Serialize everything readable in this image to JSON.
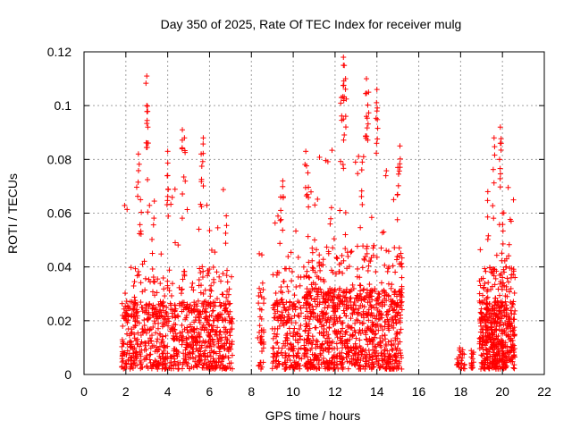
{
  "chart_data": {
    "type": "scatter",
    "title": "Day 350 of 2025, Rate Of TEC Index for receiver mulg",
    "xlabel": "GPS time / hours",
    "ylabel": "ROTI / TECUs",
    "xlim": [
      0,
      22
    ],
    "ylim": [
      0,
      0.12
    ],
    "grid": true,
    "marker": "+",
    "color": "#ff0000",
    "x_ticks": [
      {
        "value": 0,
        "label": "0"
      },
      {
        "value": 2,
        "label": "2"
      },
      {
        "value": 4,
        "label": "4"
      },
      {
        "value": 6,
        "label": "6"
      },
      {
        "value": 8,
        "label": "8"
      },
      {
        "value": 10,
        "label": "10"
      },
      {
        "value": 12,
        "label": "12"
      },
      {
        "value": 14,
        "label": "14"
      },
      {
        "value": 16,
        "label": "16"
      },
      {
        "value": 18,
        "label": "18"
      },
      {
        "value": 20,
        "label": "20"
      },
      {
        "value": 22,
        "label": "22"
      }
    ],
    "y_ticks": [
      {
        "value": 0,
        "label": "0"
      },
      {
        "value": 0.02,
        "label": "0.02"
      },
      {
        "value": 0.04,
        "label": "0.04"
      },
      {
        "value": 0.06,
        "label": "0.06"
      },
      {
        "value": 0.08,
        "label": "0.08"
      },
      {
        "value": 0.1,
        "label": "0.1"
      },
      {
        "value": 0.12,
        "label": "0.12"
      }
    ],
    "point_clusters": [
      {
        "x_range": [
          1.8,
          7.1
        ],
        "count": 900,
        "typical_max": 0.025
      },
      {
        "x_range": [
          8.3,
          8.6
        ],
        "count": 40,
        "typical_max": 0.02
      },
      {
        "x_range": [
          9.0,
          10.4
        ],
        "count": 220,
        "typical_max": 0.025
      },
      {
        "x_range": [
          10.5,
          15.2
        ],
        "count": 1000,
        "typical_max": 0.03
      },
      {
        "x_range": [
          17.8,
          18.2
        ],
        "count": 25,
        "typical_max": 0.008
      },
      {
        "x_range": [
          18.5,
          18.7
        ],
        "count": 15,
        "typical_max": 0.007
      },
      {
        "x_range": [
          18.9,
          20.6
        ],
        "count": 500,
        "typical_max": 0.025
      }
    ],
    "notable_points": [
      {
        "x": 3.0,
        "y": 0.111
      },
      {
        "x": 3.0,
        "y": 0.1
      },
      {
        "x": 3.05,
        "y": 0.092
      },
      {
        "x": 2.6,
        "y": 0.082
      },
      {
        "x": 2.7,
        "y": 0.065
      },
      {
        "x": 4.0,
        "y": 0.083
      },
      {
        "x": 4.0,
        "y": 0.074
      },
      {
        "x": 4.7,
        "y": 0.091
      },
      {
        "x": 4.8,
        "y": 0.088
      },
      {
        "x": 5.7,
        "y": 0.088
      },
      {
        "x": 5.6,
        "y": 0.082
      },
      {
        "x": 6.8,
        "y": 0.059
      },
      {
        "x": 9.5,
        "y": 0.072
      },
      {
        "x": 9.4,
        "y": 0.066
      },
      {
        "x": 10.6,
        "y": 0.083
      },
      {
        "x": 10.7,
        "y": 0.075
      },
      {
        "x": 12.4,
        "y": 0.118
      },
      {
        "x": 12.4,
        "y": 0.115
      },
      {
        "x": 12.5,
        "y": 0.11
      },
      {
        "x": 12.3,
        "y": 0.103
      },
      {
        "x": 12.4,
        "y": 0.095
      },
      {
        "x": 13.5,
        "y": 0.11
      },
      {
        "x": 13.6,
        "y": 0.105
      },
      {
        "x": 13.5,
        "y": 0.096
      },
      {
        "x": 14.0,
        "y": 0.106
      },
      {
        "x": 14.0,
        "y": 0.098
      },
      {
        "x": 13.3,
        "y": 0.079
      },
      {
        "x": 15.1,
        "y": 0.085
      },
      {
        "x": 15.0,
        "y": 0.077
      },
      {
        "x": 15.2,
        "y": 0.04
      },
      {
        "x": 19.6,
        "y": 0.088
      },
      {
        "x": 19.9,
        "y": 0.092
      },
      {
        "x": 19.9,
        "y": 0.086
      },
      {
        "x": 19.3,
        "y": 0.068
      },
      {
        "x": 20.0,
        "y": 0.06
      },
      {
        "x": 20.2,
        "y": 0.043
      }
    ]
  }
}
